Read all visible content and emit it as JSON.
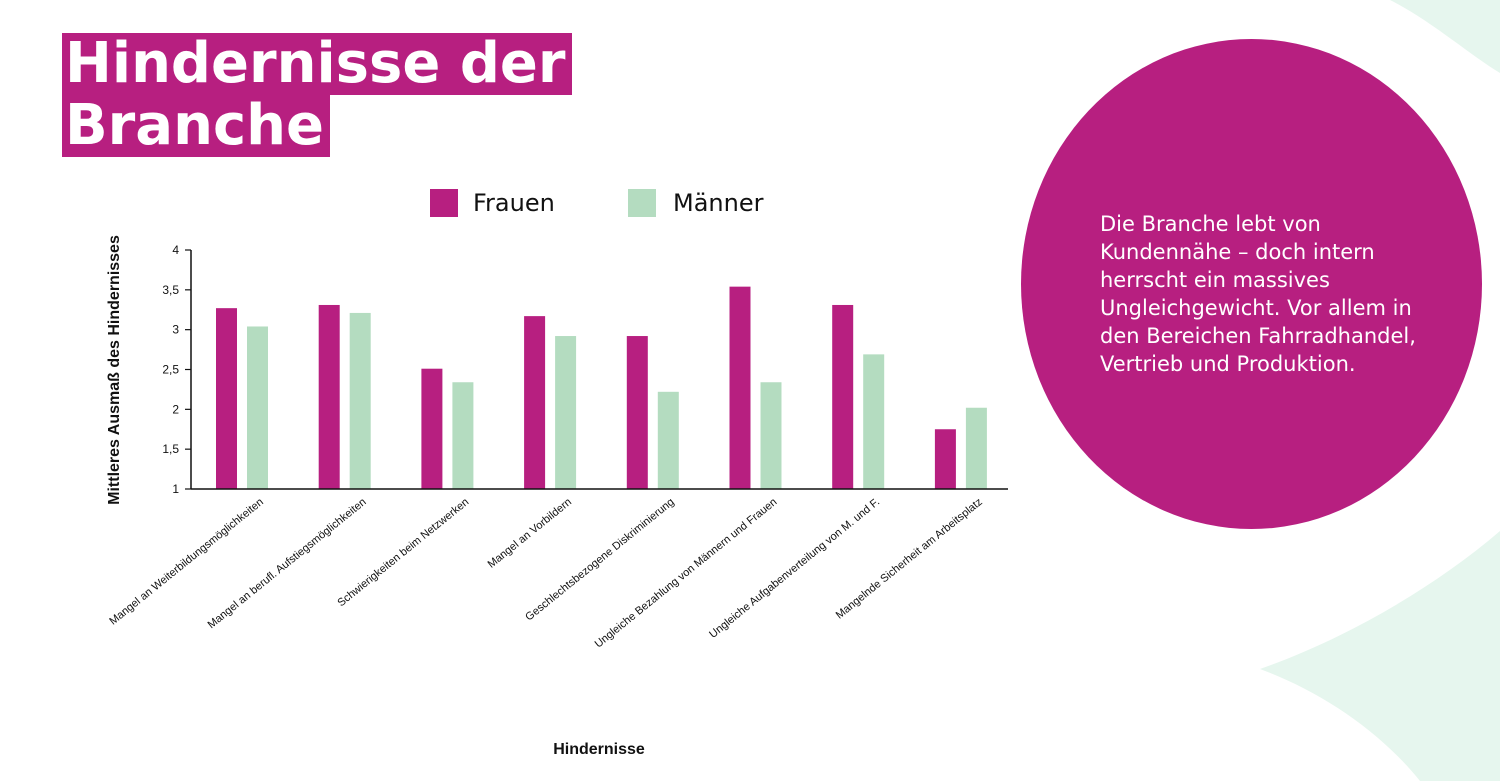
{
  "page": {
    "title_line1": "Hindernisse der",
    "title_line2": "Branche",
    "circle_text": "Die Branche lebt von Kundennähe – doch intern herrscht ein massives Ungleichgewicht. Vor allem in den Bereichen Fahrradhandel, Vertrieb und Produktion.",
    "colors": {
      "magenta": "#b71f80",
      "mint": "#b4dcc0",
      "decor_mint": "#e6f6ee"
    }
  },
  "chart_data": {
    "type": "bar",
    "title": "",
    "xlabel": "Hindernisse",
    "ylabel": "Mittleres Ausmaß des Hindernisses",
    "ylim": [
      1,
      4
    ],
    "yticks": [
      "1",
      "1,5",
      "2",
      "2,5",
      "3",
      "3,5",
      "4"
    ],
    "legend_position": "top",
    "grid": false,
    "categories": [
      "Mangel an Weiterbildungsmöglichkeiten",
      "Mangel an berufl. Aufstiegsmöglichkeiten",
      "Schwierigkeiten beim Netzwerken",
      "Mangel an Vorbildern",
      "Geschlechtsbezogene Diskriminierung",
      "Ungleiche Bezahlung von Männern und Frauen",
      "Ungleiche Aufgabenverteilung von M. und F.",
      "Mangelnde Sicherheit am Arbeitsplatz"
    ],
    "series": [
      {
        "name": "Frauen",
        "color": "#b71f80",
        "values": [
          3.27,
          3.31,
          2.51,
          3.17,
          2.92,
          3.54,
          3.31,
          1.75
        ]
      },
      {
        "name": "Männer",
        "color": "#b4dcc0",
        "values": [
          3.04,
          3.21,
          2.34,
          2.92,
          2.22,
          2.34,
          2.69,
          2.02
        ]
      }
    ]
  }
}
